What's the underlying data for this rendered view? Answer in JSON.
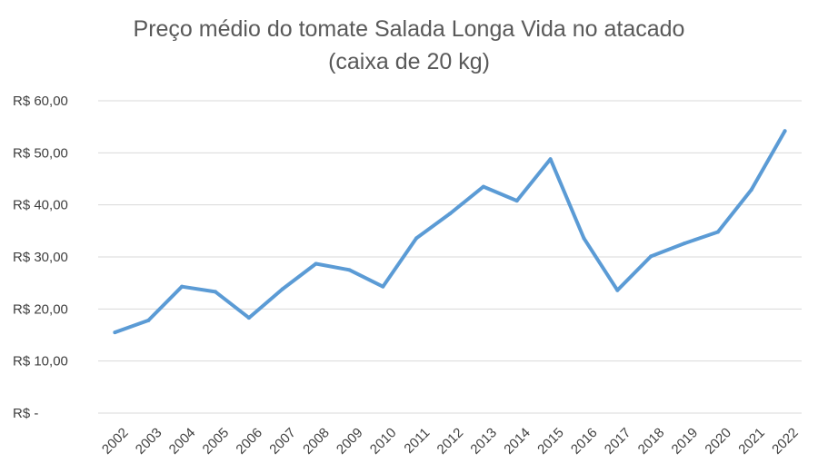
{
  "chart_data": {
    "type": "line",
    "title_line1": "Preço médio do tomate Salada Longa Vida no atacado",
    "title_line2": "(caixa de 20 kg)",
    "xlabel": "",
    "ylabel": "",
    "ylim": [
      0,
      60
    ],
    "grid": true,
    "legend": "none",
    "series_color": "#5B9BD5",
    "yticks": [
      0,
      10,
      20,
      30,
      40,
      50,
      60
    ],
    "ytick_labels": [
      "R$ -",
      "R$ 10,00",
      "R$ 20,00",
      "R$ 30,00",
      "R$ 40,00",
      "R$ 50,00",
      "R$ 60,00"
    ],
    "categories": [
      "2002",
      "2003",
      "2004",
      "2005",
      "2006",
      "2007",
      "2008",
      "2009",
      "2010",
      "2011",
      "2012",
      "2013",
      "2014",
      "2015",
      "2016",
      "2017",
      "2018",
      "2019",
      "2020",
      "2021",
      "2022"
    ],
    "series": [
      {
        "values": [
          15.5,
          17.8,
          24.3,
          23.3,
          18.3,
          23.8,
          28.7,
          27.5,
          24.3,
          33.6,
          38.3,
          43.5,
          40.8,
          48.8,
          33.6,
          23.6,
          30.1,
          32.6,
          34.8,
          42.9,
          54.2
        ]
      }
    ]
  }
}
